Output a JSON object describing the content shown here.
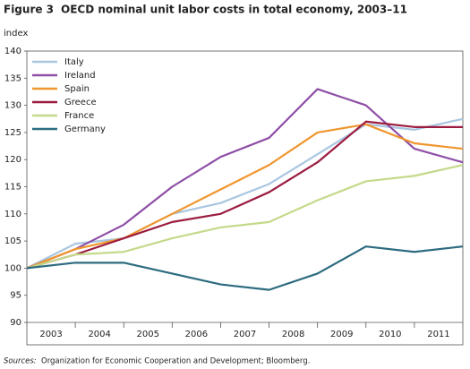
{
  "chart_data": {
    "type": "line",
    "figure_label": "Figure 3",
    "title": "OECD nominal unit labor costs in total economy, 2003–11",
    "y_axis_label": "index",
    "x": [
      2002.5,
      2003.5,
      2004.5,
      2005.5,
      2006.5,
      2007.5,
      2008.5,
      2009.5,
      2010.5,
      2011.5
    ],
    "xlim": [
      2002.5,
      2011.5
    ],
    "xticks": [
      2003,
      2004,
      2005,
      2006,
      2007,
      2008,
      2009,
      2010,
      2011
    ],
    "ylim": [
      90,
      140
    ],
    "yticks": [
      90,
      95,
      100,
      105,
      110,
      115,
      120,
      125,
      130,
      135,
      140
    ],
    "legend": "top-left",
    "series": [
      {
        "name": "Italy",
        "color": "#a9c6e0",
        "values": [
          100,
          104.5,
          105.5,
          110,
          112,
          115.5,
          121,
          126.5,
          125.5,
          127.5
        ]
      },
      {
        "name": "Ireland",
        "color": "#8e4fa6",
        "values": [
          100,
          103.5,
          108,
          115,
          120.5,
          124,
          133,
          130,
          122,
          119.5
        ]
      },
      {
        "name": "Spain",
        "color": "#f0962d",
        "values": [
          100,
          103.5,
          105.5,
          110,
          114.5,
          119,
          125,
          126.5,
          123,
          122
        ]
      },
      {
        "name": "Greece",
        "color": "#9b1c40",
        "values": [
          100,
          102.5,
          105.5,
          108.5,
          110,
          114,
          119.5,
          127,
          126,
          126
        ]
      },
      {
        "name": "France",
        "color": "#c4d98a",
        "values": [
          100,
          102.5,
          103,
          105.5,
          107.5,
          108.5,
          112.5,
          116,
          117,
          119
        ]
      },
      {
        "name": "Germany",
        "color": "#2c6b7f",
        "values": [
          100,
          101,
          101,
          99,
          97,
          96,
          99,
          104,
          103,
          104
        ]
      }
    ],
    "source_label": "Sources:",
    "source": "Organization for Economic Cooperation and Development; Bloomberg."
  }
}
